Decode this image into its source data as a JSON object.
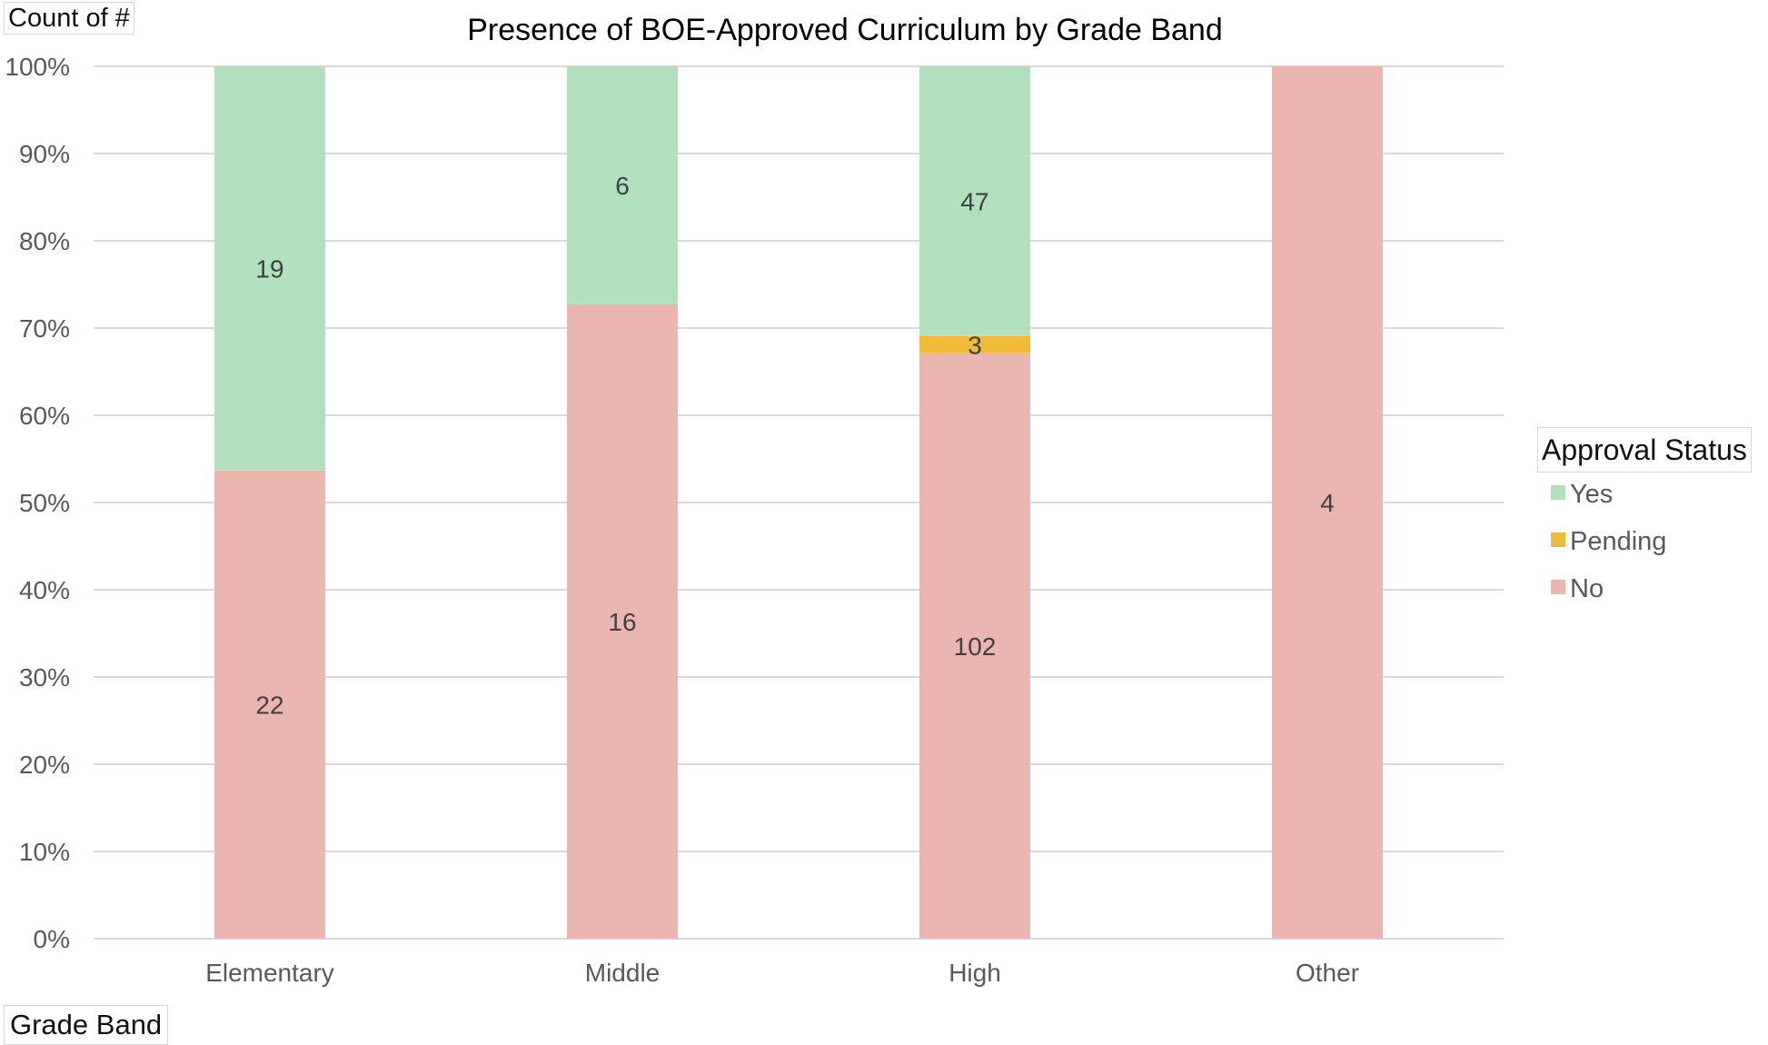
{
  "field_buttons": {
    "value": "Count of #",
    "axis": "Grade Band",
    "legend": "Approval Status"
  },
  "chart_data": {
    "type": "bar",
    "stacked": "percent",
    "title": "Presence of BOE-Approved Curriculum by Grade Band",
    "xlabel": "",
    "ylabel": "",
    "categories": [
      "Elementary",
      "Middle",
      "High",
      "Other"
    ],
    "series": [
      {
        "name": "No",
        "values": [
          22,
          16,
          102,
          4
        ],
        "color": "#ebb5b0"
      },
      {
        "name": "Pending",
        "values": [
          0,
          0,
          3,
          0
        ],
        "color": "#f0bb38"
      },
      {
        "name": "Yes",
        "values": [
          19,
          6,
          47,
          0
        ],
        "color": "#b3e1be"
      }
    ],
    "legend_order": [
      "Yes",
      "Pending",
      "No"
    ],
    "ylim": [
      0,
      1
    ],
    "yticks": [
      "0%",
      "10%",
      "20%",
      "30%",
      "40%",
      "50%",
      "60%",
      "70%",
      "80%",
      "90%",
      "100%"
    ],
    "grid": true,
    "legend_position": "right",
    "data_labels": true,
    "colors": {
      "gridline": "#d9d9d9",
      "label_text": "#404040",
      "tick_text": "#595959"
    }
  }
}
